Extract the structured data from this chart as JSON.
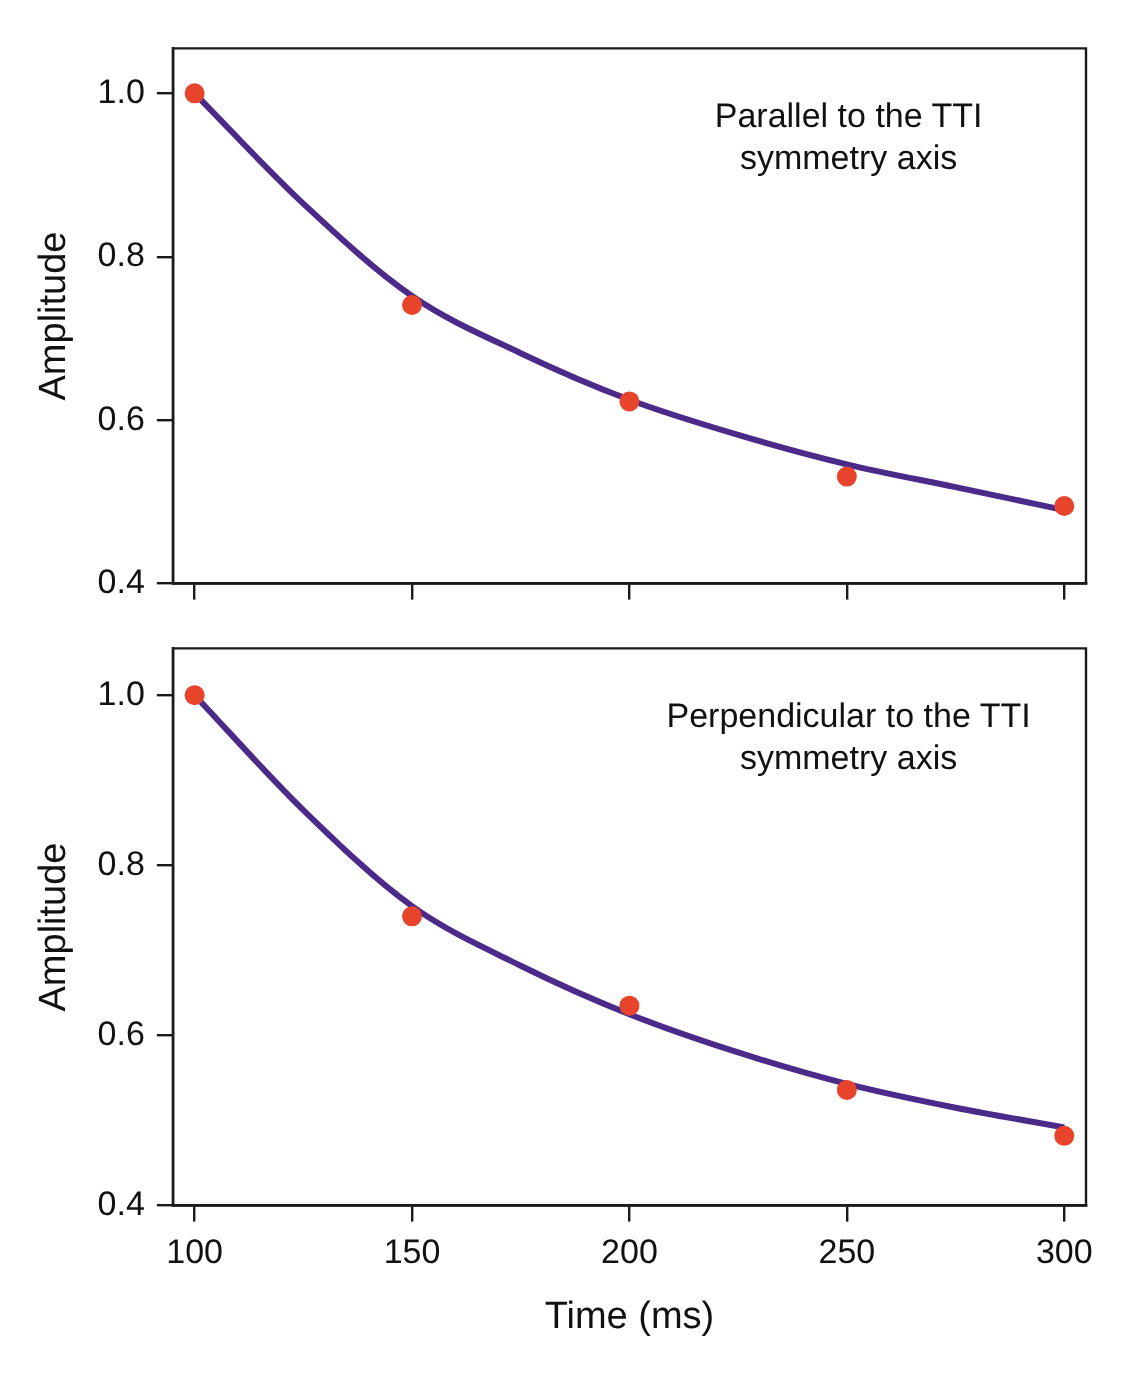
{
  "chart_data": [
    {
      "type": "scatter",
      "ylabel": "Amplitude",
      "annotations": [
        "Parallel to the TTI\nsymmetry axis"
      ],
      "xlim": [
        95,
        305
      ],
      "xticks": [
        100,
        150,
        200,
        250,
        300
      ],
      "ylim": [
        0.4,
        1.055
      ],
      "yticks": [
        0.4,
        0.6,
        0.8,
        {
          "value": 1,
          "label": "1.0"
        }
      ],
      "tick_labels": "y",
      "series": [
        {
          "type": "scatter",
          "marker": "circle",
          "color": "#e8432b",
          "x": [
            100,
            150,
            200,
            250,
            300
          ],
          "values": [
            1.0,
            0.741,
            0.623,
            0.531,
            0.495
          ]
        },
        {
          "type": "line",
          "marker": "none",
          "color": "#4b2a8a",
          "x": [
            100,
            125,
            150,
            175,
            200,
            225,
            250,
            275,
            300
          ],
          "values": [
            1.0,
            0.865,
            0.752,
            0.682,
            0.625,
            0.582,
            0.546,
            0.518,
            0.49
          ]
        }
      ]
    },
    {
      "type": "scatter",
      "xlabel": "Time (ms)",
      "ylabel": "Amplitude",
      "annotations": [
        "Perpendicular to the TTI\nsymmetry axis"
      ],
      "xlim": [
        95,
        305
      ],
      "xticks": [
        100,
        150,
        200,
        250,
        300
      ],
      "ylim": [
        0.4,
        1.055
      ],
      "yticks": [
        0.4,
        0.6,
        0.8,
        {
          "value": 1,
          "label": "1.0"
        }
      ],
      "series": [
        {
          "type": "scatter",
          "marker": "circle",
          "color": "#e8432b",
          "x": [
            100,
            150,
            200,
            250,
            300
          ],
          "values": [
            1.0,
            0.74,
            0.635,
            0.536,
            0.482
          ]
        },
        {
          "type": "line",
          "marker": "none",
          "color": "#4b2a8a",
          "x": [
            100,
            125,
            150,
            175,
            200,
            225,
            250,
            275,
            300
          ],
          "values": [
            1.0,
            0.865,
            0.752,
            0.682,
            0.625,
            0.58,
            0.543,
            0.515,
            0.492
          ]
        }
      ]
    }
  ]
}
